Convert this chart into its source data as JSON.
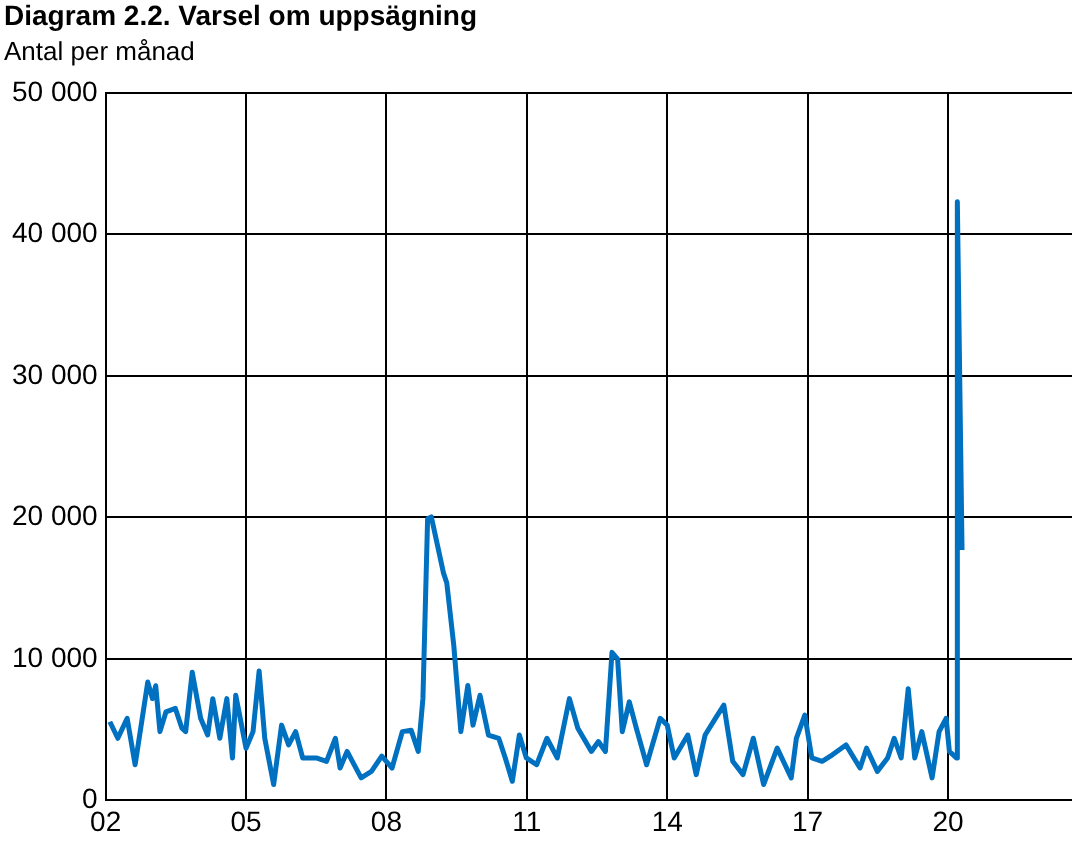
{
  "chart_data": {
    "type": "line",
    "title": "Diagram 2.2. Varsel om uppsägning",
    "subtitle": "Antal per månad",
    "x": [
      2002.09,
      2002.26,
      2002.46,
      2002.63,
      2002.9,
      2003.0,
      2003.07,
      2003.16,
      2003.29,
      2003.49,
      2003.63,
      2003.71,
      2003.85,
      2004.03,
      2004.18,
      2004.29,
      2004.44,
      2004.59,
      2004.71,
      2004.78,
      2005.0,
      2005.15,
      2005.28,
      2005.4,
      2005.59,
      2005.76,
      2005.91,
      2006.06,
      2006.21,
      2006.5,
      2006.72,
      2006.91,
      2007.01,
      2007.16,
      2007.46,
      2007.68,
      2007.9,
      2008.12,
      2008.34,
      2008.53,
      2008.68,
      2008.78,
      2008.88,
      2008.96,
      2009.22,
      2009.29,
      2009.44,
      2009.59,
      2009.74,
      2009.85,
      2010.0,
      2010.18,
      2010.4,
      2010.54,
      2010.69,
      2010.84,
      2010.99,
      2011.21,
      2011.43,
      2011.65,
      2011.91,
      2012.09,
      2012.38,
      2012.53,
      2012.68,
      2012.82,
      2012.94,
      2013.04,
      2013.19,
      2013.34,
      2013.56,
      2013.85,
      2014.0,
      2014.15,
      2014.44,
      2014.62,
      2014.81,
      2015.03,
      2015.21,
      2015.4,
      2015.62,
      2015.84,
      2016.06,
      2016.35,
      2016.65,
      2016.76,
      2016.94,
      2017.09,
      2017.31,
      2017.53,
      2017.82,
      2018.12,
      2018.26,
      2018.49,
      2018.71,
      2018.85,
      2019.0,
      2019.15,
      2019.29,
      2019.44,
      2019.66,
      2019.81,
      2019.96,
      2020.03,
      2020.18,
      2020.2,
      2020.3
    ],
    "series": [
      {
        "color": "#0070c0",
        "values": [
          5560,
          4390,
          5800,
          2520,
          8360,
          7200,
          8100,
          4860,
          6260,
          6500,
          5100,
          4860,
          9060,
          5800,
          4620,
          7190,
          4390,
          7190,
          3000,
          7430,
          3690,
          4860,
          9150,
          4390,
          1120,
          5320,
          3920,
          4860,
          3000,
          3000,
          2760,
          4390,
          2290,
          3460,
          1590,
          2050,
          3130,
          2290,
          4860,
          4950,
          3460,
          7190,
          19900,
          20030,
          16060,
          15360,
          10930,
          4860,
          8120,
          5320,
          7430,
          4620,
          4390,
          3000,
          1350,
          4620,
          3000,
          2520,
          4390,
          3000,
          7190,
          5100,
          3460,
          4160,
          3460,
          10460,
          9990,
          4860,
          6960,
          5100,
          2520,
          5800,
          5320,
          3000,
          4620,
          1820,
          4620,
          5800,
          6730,
          2760,
          1820,
          4390,
          1120,
          3690,
          1590,
          4390,
          6030,
          3000,
          2760,
          3220,
          3920,
          2290,
          3690,
          2050,
          3000,
          4390,
          3000,
          7890,
          3000,
          4860,
          1590,
          4860,
          5800,
          3460,
          3000,
          42300,
          17700
        ]
      }
    ],
    "xlim": [
      2002,
      2022.65
    ],
    "xticks": [
      {
        "value": 2002,
        "label": "02"
      },
      {
        "value": 2005,
        "label": "05"
      },
      {
        "value": 2008,
        "label": "08"
      },
      {
        "value": 2011,
        "label": "11"
      },
      {
        "value": 2014,
        "label": "14"
      },
      {
        "value": 2017,
        "label": "17"
      },
      {
        "value": 2020,
        "label": "20"
      }
    ],
    "ylim": [
      0,
      50000
    ],
    "yticks": [
      0,
      {
        "value": 10000,
        "label": "10 000"
      },
      {
        "value": 20000,
        "label": "20 000"
      },
      {
        "value": 30000,
        "label": "30 000"
      },
      {
        "value": 40000,
        "label": "40 000"
      },
      {
        "value": 50000,
        "label": "50 000"
      }
    ],
    "grid": true,
    "marker": "none",
    "line_style": "solid"
  }
}
